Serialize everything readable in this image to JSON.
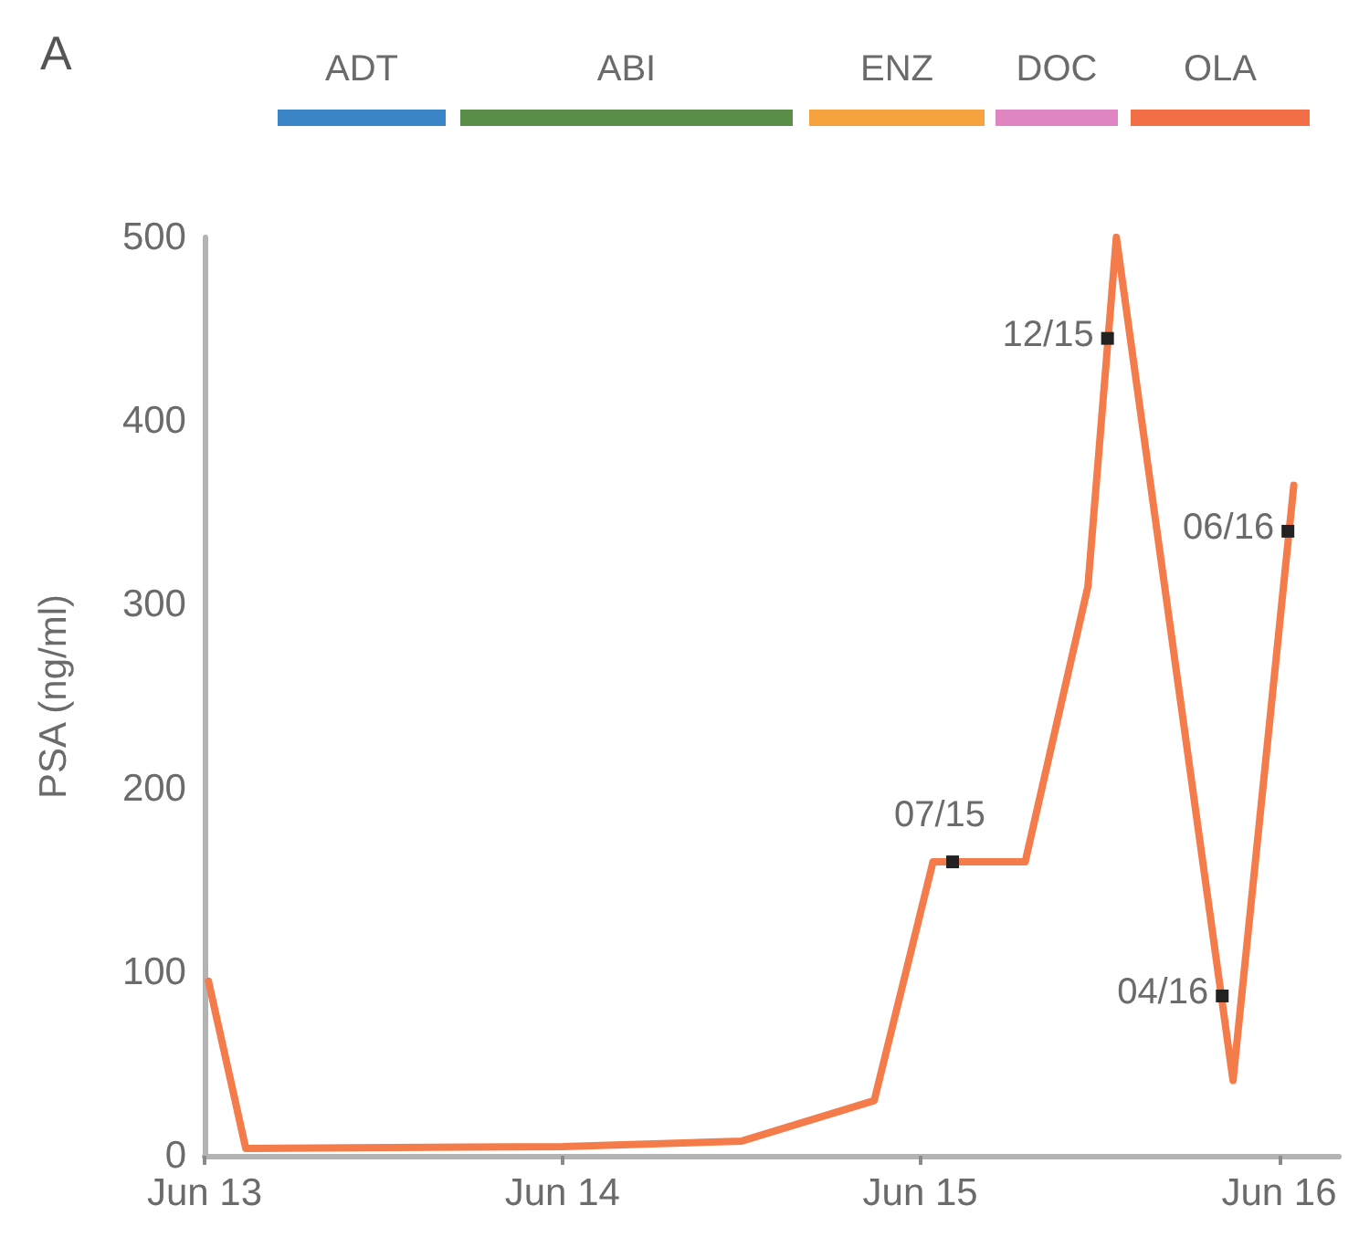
{
  "chart_data": {
    "type": "line",
    "ylabel": "PSA (ng/ml)",
    "annotations": [
      "A",
      "ADT",
      "ABI",
      "ENZ",
      "DOC",
      "OLA",
      {
        "text": "07/15",
        "x": "2015-07-04",
        "y": 160
      },
      {
        "text": "12/15",
        "x": "2015-12-09",
        "y": 445
      },
      {
        "text": "04/16",
        "x": "2016-04-04",
        "y": 87
      },
      {
        "text": "06/16",
        "x": "2016-06-10",
        "y": 340
      }
    ],
    "x": [
      "2013-06-05",
      "2013-07-13",
      "2014-06-01",
      "2014-12-01",
      "2015-04-15",
      "2015-06-14",
      "2015-09-16",
      "2015-11-19",
      "2015-12-18",
      "2016-04-15",
      "2016-06-16"
    ],
    "values": [
      95,
      4,
      5,
      8,
      30,
      160,
      160,
      310,
      500,
      41,
      365
    ],
    "color": "#f47b4a",
    "xlim": [
      "2013-06",
      "2016-08"
    ],
    "xticks": [
      {
        "value": "2013-06",
        "label": "Jun 13"
      },
      {
        "value": "2014-06",
        "label": "Jun 14"
      },
      {
        "value": "2015-06",
        "label": "Jun 15"
      },
      {
        "value": "2016-06",
        "label": "Jun 16"
      }
    ],
    "ylim": [
      0,
      500
    ],
    "yticks": [
      0,
      100,
      200,
      300,
      400,
      500
    ]
  }
}
